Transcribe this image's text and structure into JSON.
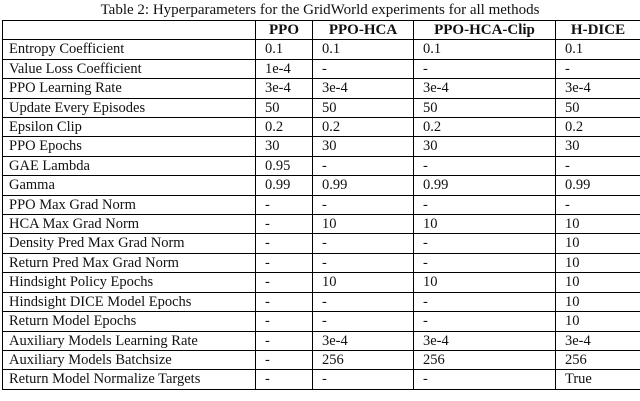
{
  "caption": "Table 2: Hyperparameters for the GridWorld experiments for all methods",
  "table": {
    "columns": [
      "",
      "PPO",
      "PPO-HCA",
      "PPO-HCA-Clip",
      "H-DICE"
    ],
    "rows": [
      {
        "label": "Entropy Coefficient",
        "values": [
          "0.1",
          "0.1",
          "0.1",
          "0.1"
        ]
      },
      {
        "label": "Value Loss Coefficient",
        "values": [
          "1e-4",
          "-",
          "-",
          "-"
        ]
      },
      {
        "label": "PPO Learning Rate",
        "values": [
          "3e-4",
          "3e-4",
          "3e-4",
          "3e-4"
        ]
      },
      {
        "label": "Update Every Episodes",
        "values": [
          "50",
          "50",
          "50",
          "50"
        ]
      },
      {
        "label": "Epsilon Clip",
        "values": [
          "0.2",
          "0.2",
          "0.2",
          "0.2"
        ]
      },
      {
        "label": "PPO Epochs",
        "values": [
          "30",
          "30",
          "30",
          "30"
        ]
      },
      {
        "label": "GAE Lambda",
        "values": [
          "0.95",
          "-",
          "-",
          "-"
        ]
      },
      {
        "label": "Gamma",
        "values": [
          "0.99",
          "0.99",
          "0.99",
          "0.99"
        ]
      },
      {
        "label": "PPO Max Grad Norm",
        "values": [
          "-",
          "-",
          "-",
          "-"
        ]
      },
      {
        "label": "HCA Max Grad Norm",
        "values": [
          "-",
          "10",
          "10",
          "10"
        ]
      },
      {
        "label": "Density Pred Max Grad Norm",
        "values": [
          "-",
          "-",
          "-",
          "10"
        ]
      },
      {
        "label": "Return Pred Max Grad Norm",
        "values": [
          "-",
          "-",
          "-",
          "10"
        ]
      },
      {
        "label": "Hindsight Policy Epochs",
        "values": [
          "-",
          "10",
          "10",
          "10"
        ]
      },
      {
        "label": "Hindsight DICE Model Epochs",
        "values": [
          "-",
          "-",
          "-",
          "10"
        ]
      },
      {
        "label": "Return Model Epochs",
        "values": [
          "-",
          "-",
          "-",
          "10"
        ]
      },
      {
        "label": "Auxiliary Models Learning Rate",
        "values": [
          "-",
          "3e-4",
          "3e-4",
          "3e-4"
        ]
      },
      {
        "label": "Auxiliary Models Batchsize",
        "values": [
          "-",
          "256",
          "256",
          "256"
        ]
      },
      {
        "label": "Return Model Normalize Targets",
        "values": [
          "-",
          "-",
          "-",
          "True"
        ]
      }
    ]
  }
}
